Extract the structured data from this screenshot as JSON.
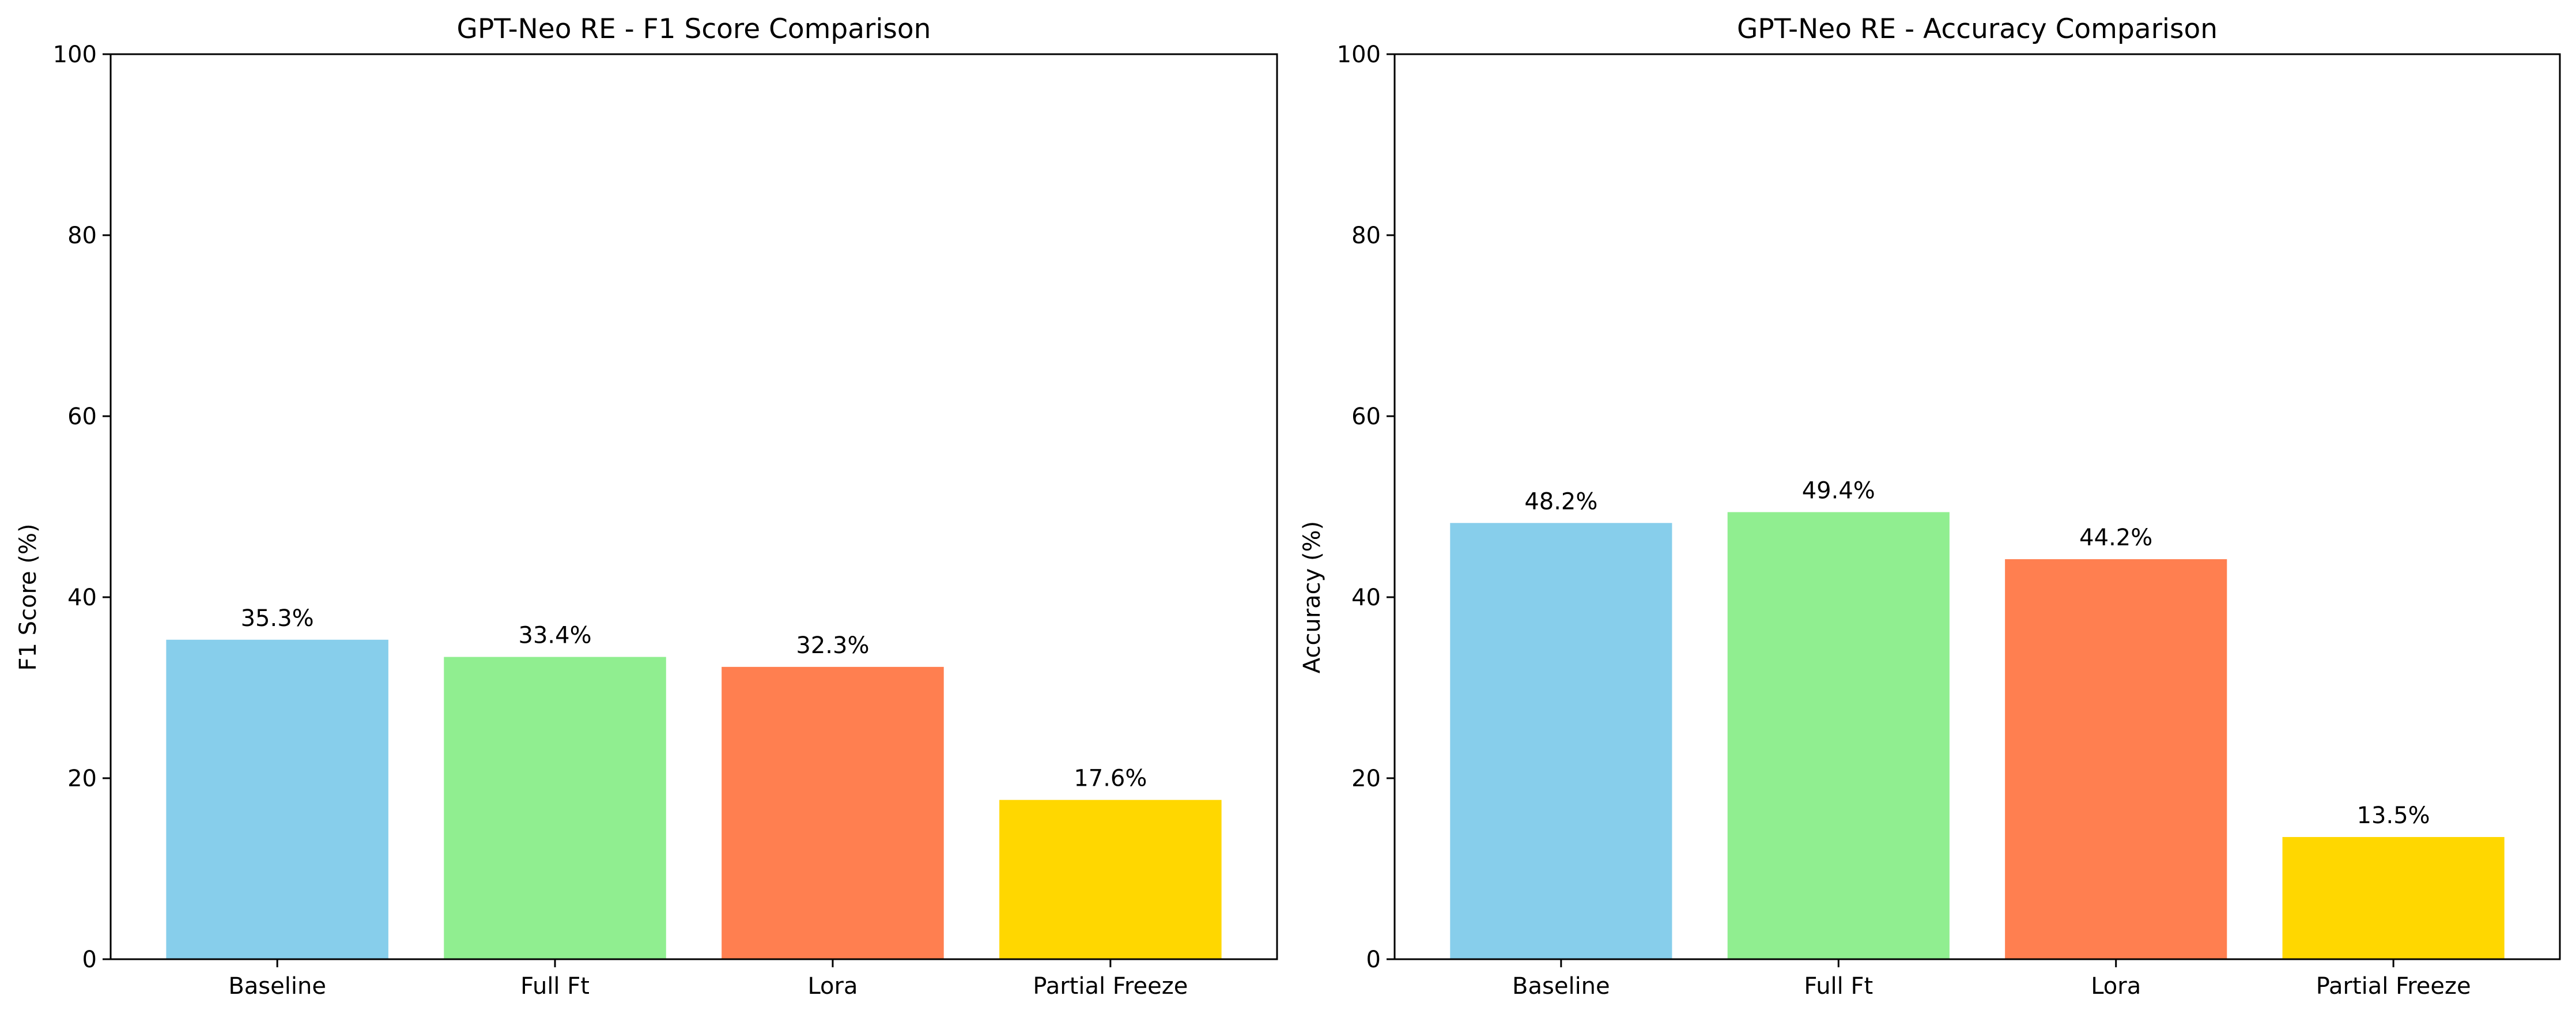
{
  "chart_data": [
    {
      "type": "bar",
      "title": "GPT-Neo RE - F1 Score Comparison",
      "xlabel": "",
      "ylabel": "F1 Score (%)",
      "ylim": [
        0,
        100
      ],
      "yticks": [
        0,
        20,
        40,
        60,
        80,
        100
      ],
      "grid": false,
      "categories": [
        "Baseline",
        "Full Ft",
        "Lora",
        "Partial Freeze"
      ],
      "values": [
        35.3,
        33.4,
        32.3,
        17.6
      ],
      "value_labels": [
        "35.3%",
        "33.4%",
        "32.3%",
        "17.6%"
      ],
      "colors": [
        "#87CEEB",
        "#90EE90",
        "#FF7F50",
        "#FFD700"
      ]
    },
    {
      "type": "bar",
      "title": "GPT-Neo RE - Accuracy Comparison",
      "xlabel": "",
      "ylabel": "Accuracy (%)",
      "ylim": [
        0,
        100
      ],
      "yticks": [
        0,
        20,
        40,
        60,
        80,
        100
      ],
      "grid": false,
      "categories": [
        "Baseline",
        "Full Ft",
        "Lora",
        "Partial Freeze"
      ],
      "values": [
        48.2,
        49.4,
        44.2,
        13.5
      ],
      "value_labels": [
        "48.2%",
        "49.4%",
        "44.2%",
        "13.5%"
      ],
      "colors": [
        "#87CEEB",
        "#90EE90",
        "#FF7F50",
        "#FFD700"
      ]
    }
  ]
}
